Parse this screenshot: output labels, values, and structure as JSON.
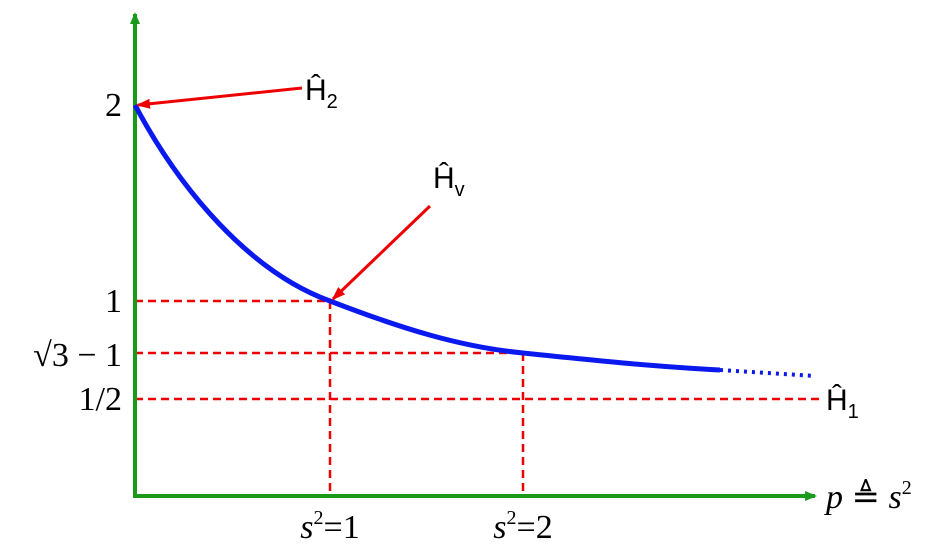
{
  "y_labels": [
    "2",
    "1",
    "√3 − 1",
    "1/2"
  ],
  "x_labels": [
    {
      "base": "s",
      "sup": "2",
      "rest": "=1"
    },
    {
      "base": "s",
      "sup": "2",
      "rest": "=2"
    }
  ],
  "x_axis_label": {
    "var": "p",
    "sym": " ≜ ",
    "base": "s",
    "sup": "2"
  },
  "annotations": [
    {
      "text": "Ĥ",
      "sub": "2"
    },
    {
      "text": "Ĥ",
      "sub": "v"
    },
    {
      "text": "Ĥ",
      "sub": "1"
    }
  ]
}
